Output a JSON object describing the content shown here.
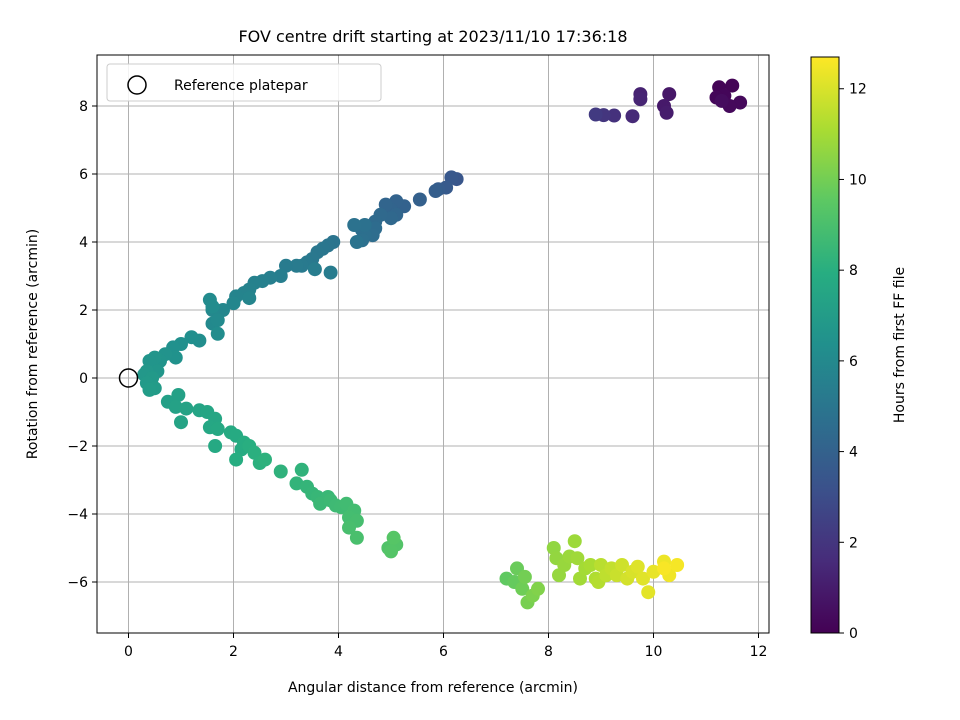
{
  "chart_data": {
    "type": "scatter",
    "title": "FOV centre drift starting at 2023/11/10 17:36:18",
    "xlabel": "Angular distance from reference (arcmin)",
    "ylabel": "Rotation from reference (arcmin)",
    "xlim": [
      -0.6,
      12.2
    ],
    "ylim": [
      -7.5,
      9.5
    ],
    "xticks": [
      0,
      2,
      4,
      6,
      8,
      10,
      12
    ],
    "yticks": [
      -6,
      -4,
      -2,
      0,
      2,
      4,
      6,
      8
    ],
    "grid": true,
    "legend": {
      "placement": "upper-left",
      "entries": [
        "Reference platepar"
      ]
    },
    "reference": {
      "x": 0,
      "y": 0,
      "label": "Reference platepar",
      "marker": "open-circle"
    },
    "colorbar": {
      "label": "Hours from first FF file",
      "colormap": "viridis",
      "range": [
        0,
        12.7
      ],
      "ticks": [
        0,
        2,
        4,
        6,
        8,
        10,
        12
      ]
    },
    "series": [
      {
        "points": [
          [
            11.25,
            8.55,
            0.1
          ],
          [
            11.5,
            8.6,
            0.1
          ],
          [
            11.35,
            8.3,
            0.2
          ],
          [
            11.2,
            8.25,
            0.2
          ],
          [
            11.65,
            8.1,
            0.3
          ],
          [
            11.45,
            8.0,
            0.3
          ],
          [
            11.3,
            8.15,
            0.4
          ],
          [
            10.3,
            8.35,
            0.8
          ],
          [
            10.2,
            8.0,
            0.9
          ],
          [
            10.25,
            7.8,
            1.0
          ],
          [
            9.75,
            8.35,
            1.2
          ],
          [
            9.75,
            8.2,
            1.3
          ],
          [
            9.6,
            7.7,
            1.5
          ],
          [
            9.25,
            7.72,
            1.8
          ],
          [
            9.05,
            7.73,
            2.0
          ],
          [
            8.9,
            7.75,
            2.2
          ],
          [
            6.25,
            5.85,
            3.4
          ],
          [
            6.15,
            5.9,
            3.5
          ],
          [
            6.05,
            5.6,
            3.6
          ],
          [
            5.9,
            5.55,
            3.7
          ],
          [
            5.85,
            5.5,
            3.8
          ],
          [
            5.55,
            5.25,
            3.9
          ],
          [
            5.25,
            5.05,
            4.0
          ],
          [
            5.1,
            5.2,
            4.05
          ],
          [
            5.0,
            4.95,
            4.1
          ],
          [
            4.9,
            5.1,
            4.15
          ],
          [
            5.1,
            4.8,
            4.2
          ],
          [
            5.0,
            4.7,
            4.3
          ],
          [
            4.8,
            4.8,
            4.35
          ],
          [
            4.7,
            4.6,
            4.4
          ],
          [
            4.7,
            4.4,
            4.5
          ],
          [
            4.65,
            4.2,
            4.55
          ],
          [
            4.45,
            4.35,
            4.6
          ],
          [
            4.5,
            4.2,
            4.65
          ],
          [
            4.45,
            4.05,
            4.7
          ],
          [
            4.5,
            4.5,
            4.75
          ],
          [
            4.3,
            4.5,
            4.8
          ],
          [
            4.35,
            4.0,
            4.85
          ],
          [
            3.9,
            4.0,
            4.9
          ],
          [
            3.8,
            3.9,
            4.95
          ],
          [
            3.7,
            3.8,
            5.0
          ],
          [
            3.6,
            3.7,
            5.05
          ],
          [
            3.5,
            3.5,
            5.1
          ],
          [
            3.4,
            3.4,
            5.15
          ],
          [
            3.3,
            3.3,
            5.2
          ],
          [
            3.2,
            3.3,
            5.25
          ],
          [
            3.0,
            3.3,
            5.3
          ],
          [
            3.85,
            3.1,
            5.35
          ],
          [
            3.55,
            3.2,
            5.4
          ],
          [
            2.9,
            3.0,
            5.45
          ],
          [
            2.7,
            2.95,
            5.5
          ],
          [
            2.55,
            2.85,
            5.55
          ],
          [
            2.4,
            2.8,
            5.6
          ],
          [
            2.3,
            2.6,
            5.65
          ],
          [
            2.2,
            2.5,
            5.7
          ],
          [
            2.05,
            2.4,
            5.75
          ],
          [
            2.3,
            2.35,
            5.8
          ],
          [
            2.0,
            2.2,
            5.85
          ],
          [
            1.8,
            2.0,
            5.9
          ],
          [
            1.6,
            2.0,
            5.95
          ],
          [
            1.6,
            1.6,
            6.0
          ],
          [
            1.7,
            1.7,
            6.05
          ],
          [
            1.55,
            2.3,
            6.1
          ],
          [
            1.6,
            2.1,
            6.15
          ],
          [
            1.7,
            1.3,
            6.2
          ],
          [
            1.35,
            1.1,
            6.25
          ],
          [
            1.2,
            1.2,
            6.3
          ],
          [
            1.0,
            1.0,
            6.35
          ],
          [
            0.85,
            0.9,
            6.4
          ],
          [
            0.9,
            0.6,
            6.45
          ],
          [
            0.7,
            0.7,
            6.5
          ],
          [
            0.6,
            0.5,
            6.55
          ],
          [
            0.5,
            0.6,
            6.6
          ],
          [
            0.4,
            0.5,
            6.65
          ],
          [
            0.55,
            0.2,
            6.7
          ],
          [
            0.35,
            0.2,
            6.75
          ],
          [
            0.3,
            0.1,
            6.8
          ],
          [
            0.45,
            0.0,
            6.85
          ],
          [
            0.35,
            -0.15,
            6.9
          ],
          [
            0.5,
            -0.3,
            6.95
          ],
          [
            0.4,
            -0.35,
            7.0
          ],
          [
            0.75,
            -0.7,
            7.2
          ],
          [
            0.95,
            -0.5,
            7.25
          ],
          [
            0.9,
            -0.85,
            7.3
          ],
          [
            1.1,
            -0.9,
            7.35
          ],
          [
            1.0,
            -1.3,
            7.4
          ],
          [
            1.35,
            -0.95,
            7.45
          ],
          [
            1.5,
            -1.0,
            7.5
          ],
          [
            1.65,
            -1.2,
            7.55
          ],
          [
            1.55,
            -1.45,
            7.6
          ],
          [
            1.7,
            -1.5,
            7.65
          ],
          [
            1.65,
            -2.0,
            7.7
          ],
          [
            1.95,
            -1.6,
            7.75
          ],
          [
            2.05,
            -1.7,
            7.8
          ],
          [
            2.15,
            -2.1,
            7.85
          ],
          [
            2.2,
            -1.9,
            7.9
          ],
          [
            2.05,
            -2.4,
            7.95
          ],
          [
            2.3,
            -2.0,
            8.0
          ],
          [
            2.4,
            -2.2,
            8.05
          ],
          [
            2.5,
            -2.5,
            8.1
          ],
          [
            2.6,
            -2.4,
            8.15
          ],
          [
            2.9,
            -2.75,
            8.2
          ],
          [
            3.3,
            -2.7,
            8.25
          ],
          [
            3.2,
            -3.1,
            8.3
          ],
          [
            3.4,
            -3.2,
            8.35
          ],
          [
            3.5,
            -3.4,
            8.4
          ],
          [
            3.6,
            -3.5,
            8.45
          ],
          [
            3.8,
            -3.5,
            8.5
          ],
          [
            3.65,
            -3.7,
            8.55
          ],
          [
            3.85,
            -3.6,
            8.6
          ],
          [
            3.95,
            -3.75,
            8.65
          ],
          [
            4.05,
            -3.8,
            8.7
          ],
          [
            4.15,
            -3.7,
            8.75
          ],
          [
            4.3,
            -3.9,
            8.8
          ],
          [
            4.2,
            -4.1,
            8.85
          ],
          [
            4.35,
            -4.2,
            8.9
          ],
          [
            4.2,
            -4.4,
            8.95
          ],
          [
            4.35,
            -4.7,
            9.0
          ],
          [
            4.95,
            -5.0,
            9.2
          ],
          [
            5.1,
            -4.9,
            9.25
          ],
          [
            5.0,
            -5.1,
            9.3
          ],
          [
            5.05,
            -4.7,
            9.35
          ],
          [
            7.2,
            -5.9,
            9.6
          ],
          [
            7.35,
            -6.0,
            9.7
          ],
          [
            7.4,
            -5.6,
            9.8
          ],
          [
            7.5,
            -6.2,
            9.9
          ],
          [
            7.55,
            -5.85,
            10.0
          ],
          [
            7.6,
            -6.6,
            10.1
          ],
          [
            7.7,
            -6.4,
            10.2
          ],
          [
            7.8,
            -6.2,
            10.3
          ],
          [
            8.1,
            -5.0,
            10.6
          ],
          [
            8.15,
            -5.3,
            10.65
          ],
          [
            8.2,
            -5.8,
            10.7
          ],
          [
            8.3,
            -5.5,
            10.75
          ],
          [
            8.4,
            -5.25,
            10.8
          ],
          [
            8.5,
            -4.8,
            10.85
          ],
          [
            8.55,
            -5.3,
            10.9
          ],
          [
            8.6,
            -5.9,
            10.95
          ],
          [
            8.7,
            -5.6,
            11.0
          ],
          [
            8.8,
            -5.5,
            11.1
          ],
          [
            8.9,
            -5.9,
            11.2
          ],
          [
            8.95,
            -6.0,
            11.3
          ],
          [
            9.0,
            -5.5,
            11.4
          ],
          [
            9.1,
            -5.8,
            11.5
          ],
          [
            9.2,
            -5.6,
            11.6
          ],
          [
            9.3,
            -5.8,
            11.7
          ],
          [
            9.4,
            -5.5,
            11.8
          ],
          [
            9.5,
            -5.9,
            11.9
          ],
          [
            9.6,
            -5.7,
            12.0
          ],
          [
            9.7,
            -5.55,
            12.1
          ],
          [
            9.8,
            -5.9,
            12.15
          ],
          [
            9.9,
            -6.3,
            12.2
          ],
          [
            10.0,
            -5.7,
            12.3
          ],
          [
            10.2,
            -5.4,
            12.4
          ],
          [
            10.3,
            -5.8,
            12.45
          ],
          [
            10.45,
            -5.5,
            12.55
          ],
          [
            10.2,
            -5.6,
            12.6
          ]
        ]
      }
    ]
  }
}
